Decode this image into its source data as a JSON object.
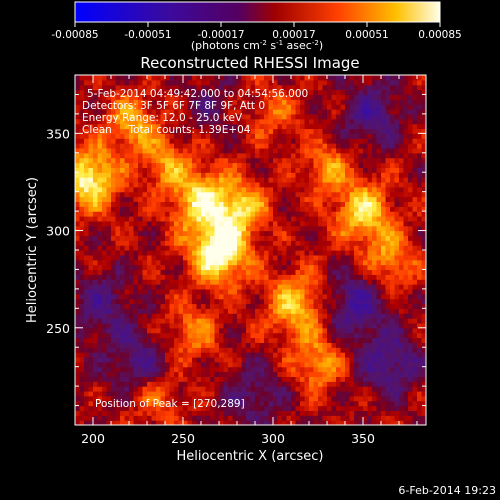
{
  "chart_data": {
    "type": "heatmap",
    "title": "Reconstructed RHESSI Image",
    "xlabel": "Heliocentric X (arcsec)",
    "ylabel": "Heliocentric Y (arcsec)",
    "xlim": [
      190,
      385
    ],
    "ylim": [
      200,
      380
    ],
    "x_ticks": [
      200,
      250,
      300,
      350
    ],
    "y_ticks": [
      250,
      300,
      350
    ],
    "colorbar": {
      "range": [
        -0.00085,
        0.00085
      ],
      "tick_labels": [
        "-0.00085",
        "-0.00051",
        "-0.00017",
        "0.00017",
        "0.00051",
        "0.00085"
      ],
      "unit_label": {
        "base": "(photons cm",
        "sup1": "-2",
        "mid1": " s",
        "sup2": "-1",
        "mid2": " asec",
        "sup3": "-2",
        "end": ")"
      }
    },
    "annotations": {
      "time_range": "5-Feb-2014 04:49:42.000 to 04:54:56.000",
      "detectors": "Detectors: 3F 5F 6F 7F 8F 9F, Att 0",
      "energy": "Energy Range: 12.0 - 25.0 keV",
      "clean": "Clean     Total counts: 1.39E+04",
      "peak": "Position of Peak = [270,289]"
    },
    "footer_timestamp": "6-Feb-2014 19:23",
    "peak_position": [
      270,
      289
    ],
    "sources": [
      {
        "x": 270,
        "y": 289,
        "amp": 1.0,
        "sigma": 11
      },
      {
        "x": 260,
        "y": 316,
        "amp": 0.72,
        "sigma": 12
      },
      {
        "x": 283,
        "y": 312,
        "amp": 0.6,
        "sigma": 10
      },
      {
        "x": 198,
        "y": 327,
        "amp": 0.85,
        "sigma": 11
      },
      {
        "x": 222,
        "y": 355,
        "amp": 0.55,
        "sigma": 10
      },
      {
        "x": 240,
        "y": 335,
        "amp": 0.45,
        "sigma": 9
      },
      {
        "x": 350,
        "y": 310,
        "amp": 0.7,
        "sigma": 11
      },
      {
        "x": 365,
        "y": 285,
        "amp": 0.5,
        "sigma": 10
      },
      {
        "x": 330,
        "y": 333,
        "amp": 0.48,
        "sigma": 9
      },
      {
        "x": 313,
        "y": 262,
        "amp": 0.62,
        "sigma": 12
      },
      {
        "x": 325,
        "y": 232,
        "amp": 0.5,
        "sigma": 10
      },
      {
        "x": 255,
        "y": 248,
        "amp": 0.42,
        "sigma": 10
      },
      {
        "x": 235,
        "y": 215,
        "amp": 0.38,
        "sigma": 10
      },
      {
        "x": 300,
        "y": 360,
        "amp": 0.32,
        "sigma": 10
      },
      {
        "x": 205,
        "y": 262,
        "amp": -0.4,
        "sigma": 12
      },
      {
        "x": 225,
        "y": 232,
        "amp": -0.45,
        "sigma": 12
      },
      {
        "x": 345,
        "y": 262,
        "amp": -0.55,
        "sigma": 12
      },
      {
        "x": 365,
        "y": 232,
        "amp": -0.5,
        "sigma": 12
      },
      {
        "x": 355,
        "y": 360,
        "amp": -0.45,
        "sigma": 12
      },
      {
        "x": 290,
        "y": 215,
        "amp": -0.35,
        "sigma": 12
      },
      {
        "x": 265,
        "y": 365,
        "amp": -0.25,
        "sigma": 10
      }
    ]
  }
}
